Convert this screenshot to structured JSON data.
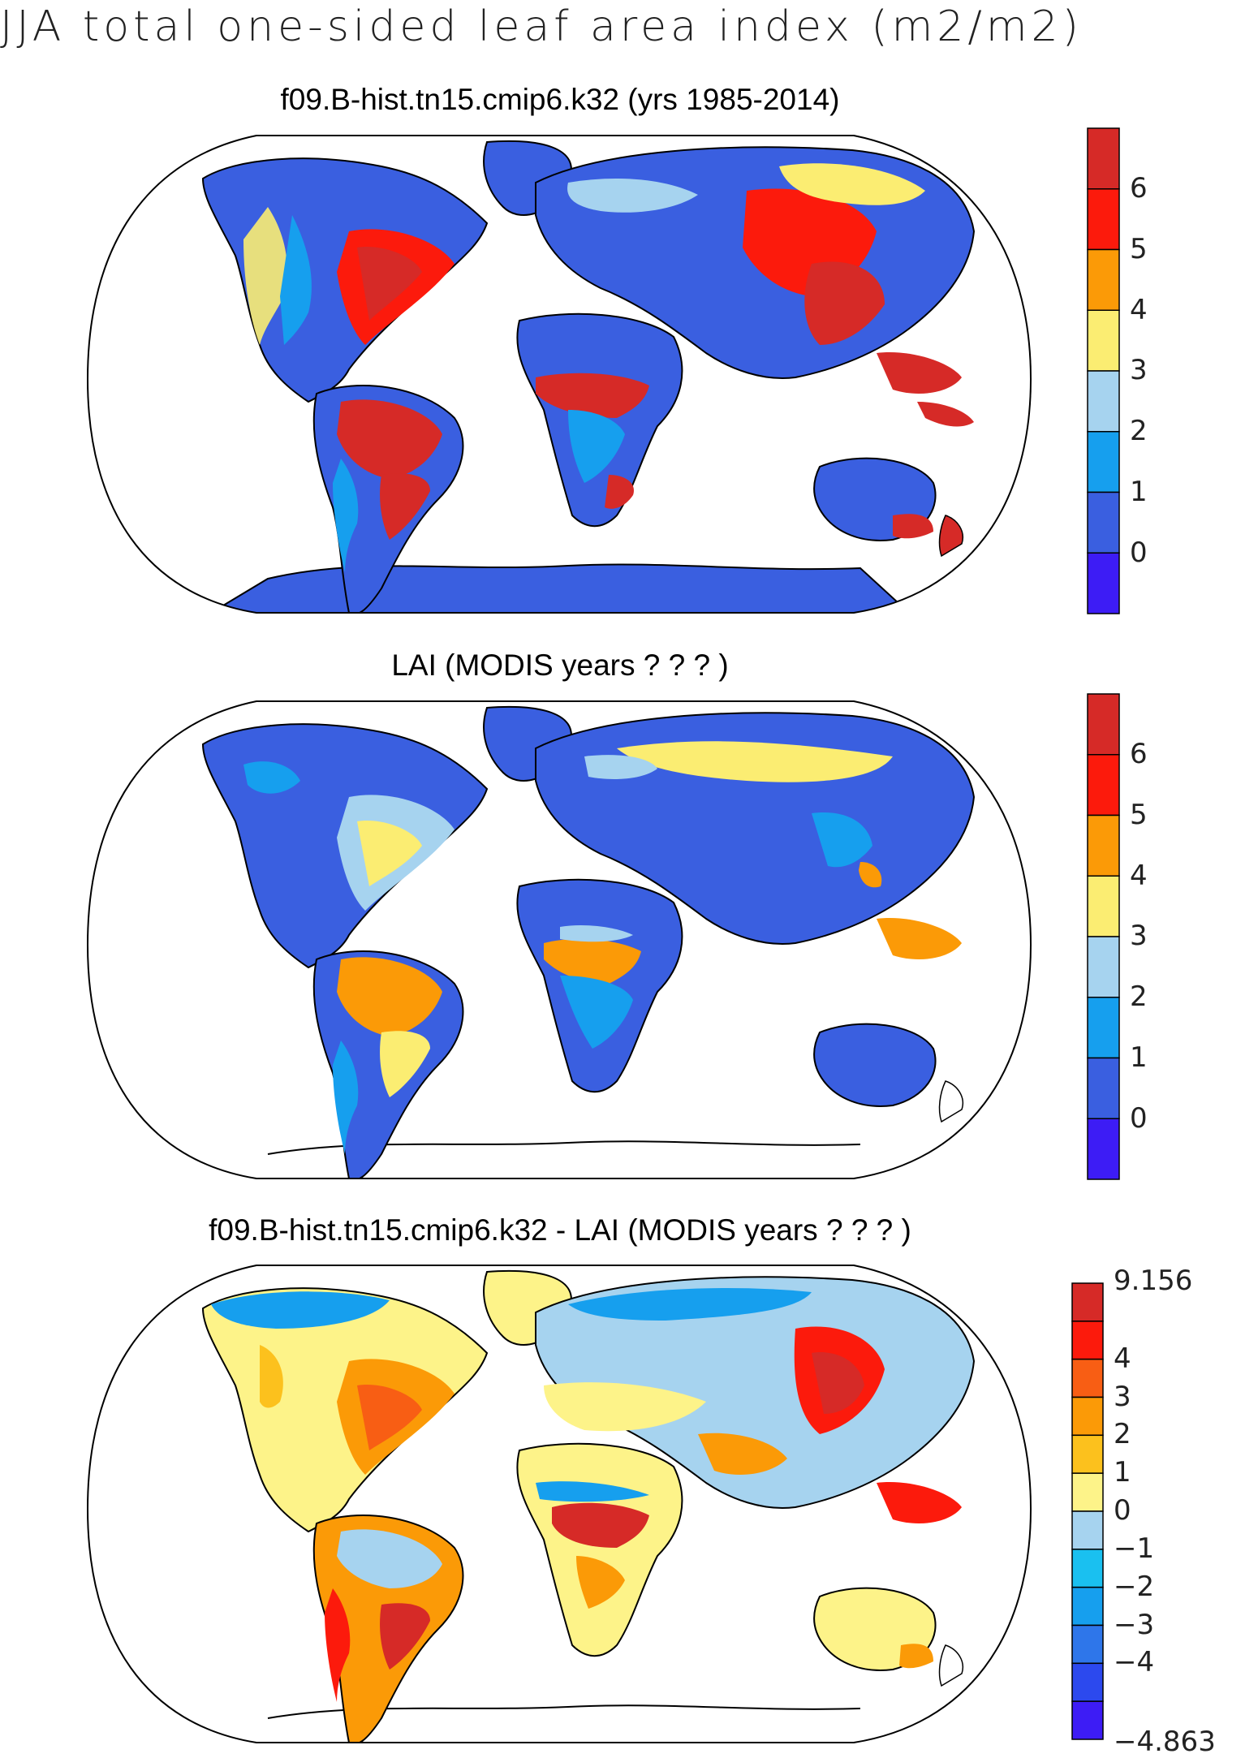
{
  "figure": {
    "title": "JJA total one-sided leaf area index (m2/m2)"
  },
  "colors": {
    "lai_scale": [
      "#3d1cf5",
      "#3a5fe0",
      "#169fee",
      "#a6d3ef",
      "#fbed72",
      "#fb9a07",
      "#fc1a0c",
      "#d62a27"
    ],
    "diff_scale": [
      "#3d1cf5",
      "#2c49ee",
      "#2e76ea",
      "#169fee",
      "#1ac0f0",
      "#a6d3ef",
      "#fdf389",
      "#fcc11d",
      "#fb9a07",
      "#f85e14",
      "#fc1a0c",
      "#d62a27"
    ],
    "outline": "#000000",
    "missing": "#ffffff"
  },
  "panels": [
    {
      "title": "f09.B-hist.tn15.cmip6.k32 (yrs 1985-2014)",
      "colorbar_labels": [
        "6",
        "5",
        "4",
        "3",
        "2",
        "1",
        "0"
      ]
    },
    {
      "title": "LAI (MODIS years ? ? ? )",
      "colorbar_labels": [
        "6",
        "5",
        "4",
        "3",
        "2",
        "1",
        "0"
      ]
    },
    {
      "title": "f09.B-hist.tn15.cmip6.k32 - LAI (MODIS years ? ? ? )",
      "colorbar_labels": [
        "9.156",
        "4",
        "3",
        "2",
        "1",
        "0",
        "−1",
        "−2",
        "−3",
        "−4",
        "−4.863"
      ]
    }
  ]
}
